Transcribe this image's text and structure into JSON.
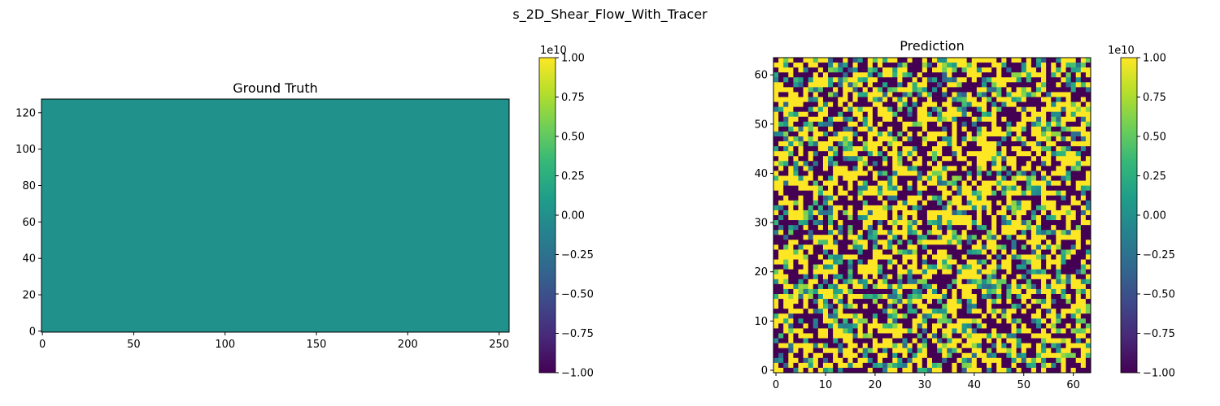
{
  "figure": {
    "suptitle": "s_2D_Shear_Flow_With_Tracer"
  },
  "colormap": {
    "name": "viridis",
    "stops": [
      "#440154",
      "#482878",
      "#3e4989",
      "#31688e",
      "#26828e",
      "#1f9e89",
      "#35b779",
      "#6ece58",
      "#b5de2b",
      "#fde725"
    ]
  },
  "chart_data": [
    {
      "type": "heatmap",
      "title": "Ground Truth",
      "xlabel": "",
      "ylabel": "",
      "grid_shape": [
        128,
        256
      ],
      "xlim": [
        0,
        256
      ],
      "ylim": [
        0,
        128
      ],
      "xticks": [
        0,
        50,
        100,
        150,
        200,
        250
      ],
      "yticks": [
        0,
        20,
        40,
        60,
        80,
        100,
        120
      ],
      "fill_value": 0,
      "fill_color": "#21918c",
      "colorbar": {
        "vmin": -1.0,
        "vmax": 1.0,
        "offset_text": "1e10",
        "ticks": [
          "−1.00",
          "−0.75",
          "−0.50",
          "−0.25",
          "0.00",
          "0.25",
          "0.50",
          "0.75",
          "1.00"
        ]
      }
    },
    {
      "type": "heatmap",
      "title": "Prediction",
      "xlabel": "",
      "ylabel": "",
      "grid_shape": [
        64,
        64
      ],
      "xlim": [
        0,
        64
      ],
      "ylim": [
        0,
        64
      ],
      "xticks": [
        0,
        10,
        20,
        30,
        40,
        50,
        60
      ],
      "yticks": [
        0,
        10,
        20,
        30,
        40,
        50,
        60
      ],
      "value_distribution": "random, saturated at -1e10 and 1e10 with some mid values",
      "colorbar": {
        "vmin": -1.0,
        "vmax": 1.0,
        "offset_text": "1e10",
        "ticks": [
          "−1.00",
          "−0.75",
          "−0.50",
          "−0.25",
          "0.00",
          "0.25",
          "0.50",
          "0.75",
          "1.00"
        ]
      }
    }
  ]
}
